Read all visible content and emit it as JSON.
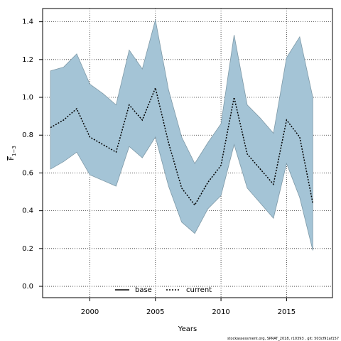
{
  "chart_data": {
    "type": "line",
    "xlabel": "Years",
    "ylabel": "F",
    "ylabel_sub": "1−3",
    "xlim": [
      1996.4,
      2018.5
    ],
    "ylim": [
      -0.06,
      1.47
    ],
    "xticks": [
      2000,
      2005,
      2010,
      2015
    ],
    "yticks": [
      0.0,
      0.2,
      0.4,
      0.6,
      0.8,
      1.0,
      1.2,
      1.4
    ],
    "grid": true,
    "legend_position": "bottom-center",
    "band_color": "#a4c4d6",
    "band_edge_color": "#7f9aa8",
    "line_color": "#000000",
    "x": [
      1997,
      1998,
      1999,
      2000,
      2001,
      2002,
      2003,
      2004,
      2005,
      2006,
      2007,
      2008,
      2009,
      2010,
      2011,
      2012,
      2013,
      2014,
      2015,
      2016,
      2017
    ],
    "series": [
      {
        "name": "current",
        "style": "dotted",
        "values": [
          0.84,
          0.88,
          0.94,
          0.79,
          0.75,
          0.71,
          0.96,
          0.88,
          1.05,
          0.76,
          0.52,
          0.43,
          0.55,
          0.64,
          1.0,
          0.7,
          0.62,
          0.54,
          0.88,
          0.79,
          0.44
        ]
      }
    ],
    "band": {
      "upper": [
        1.14,
        1.16,
        1.23,
        1.07,
        1.02,
        0.96,
        1.25,
        1.15,
        1.41,
        1.04,
        0.79,
        0.65,
        0.76,
        0.86,
        1.33,
        0.96,
        0.89,
        0.81,
        1.21,
        1.32,
        1.0
      ],
      "lower": [
        0.62,
        0.66,
        0.71,
        0.59,
        0.56,
        0.53,
        0.74,
        0.68,
        0.79,
        0.53,
        0.34,
        0.28,
        0.41,
        0.48,
        0.75,
        0.52,
        0.44,
        0.36,
        0.65,
        0.47,
        0.19
      ]
    },
    "legend": [
      {
        "label": "base",
        "style": "solid"
      },
      {
        "label": "current",
        "style": "dotted"
      }
    ],
    "footer": "stockassessment.org, SPRAT_2018, r10393 , git: 503cf91af157"
  }
}
